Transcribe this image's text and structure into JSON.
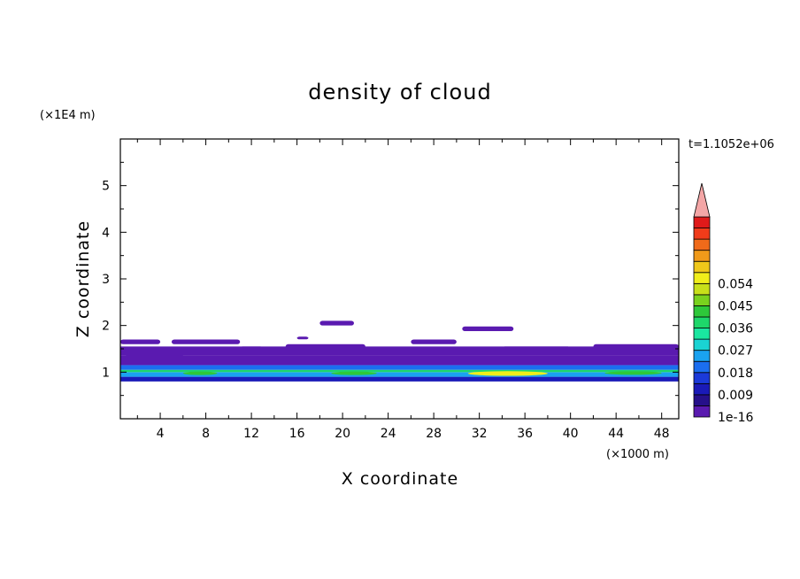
{
  "chart_data": {
    "type": "heatmap",
    "title": "density of cloud",
    "xlabel": "X coordinate",
    "ylabel": "Z coordinate",
    "x_unit": "(×1000 m)",
    "y_unit": "(×1E4 m)",
    "time_label": "t=1.1052e+06",
    "xlim": [
      0.5,
      49.5
    ],
    "ylim": [
      0,
      6
    ],
    "x_ticks": [
      "4",
      "8",
      "12",
      "16",
      "20",
      "24",
      "28",
      "32",
      "36",
      "40",
      "44",
      "48"
    ],
    "y_ticks": [
      "1",
      "2",
      "3",
      "4",
      "5"
    ],
    "colorbar": {
      "tick_labels": [
        "1e-16",
        "0.009",
        "0.018",
        "0.027",
        "0.036",
        "0.045",
        "0.054"
      ],
      "colors": [
        "#5a1ab0",
        "#26108a",
        "#1a1ab8",
        "#1b3ad9",
        "#1b6ef0",
        "#1aa2f0",
        "#1ad3d3",
        "#1ae6a0",
        "#1ed76a",
        "#2ec83a",
        "#7ad21e",
        "#c8e01a",
        "#f0ee1a",
        "#f0c81a",
        "#f09a1a",
        "#f06a1a",
        "#f03c1a",
        "#e01a1a"
      ],
      "over_color": "#f4a6a6"
    },
    "bands": [
      {
        "z": [
          0.8,
          0.9
        ],
        "level": 2
      },
      {
        "z": [
          0.9,
          1.0
        ],
        "level": 5
      },
      {
        "z": [
          1.0,
          1.05
        ],
        "level": 8
      },
      {
        "z": [
          1.05,
          1.15
        ],
        "level": 4
      },
      {
        "z": [
          1.15,
          1.35
        ],
        "level": 0
      },
      {
        "z": [
          1.35,
          1.55
        ],
        "level": 0
      }
    ],
    "patches": [
      {
        "x": [
          0.5,
          4
        ],
        "z": [
          1.6,
          1.7
        ]
      },
      {
        "x": [
          5,
          11
        ],
        "z": [
          1.6,
          1.7
        ]
      },
      {
        "x": [
          1,
          6
        ],
        "z": [
          1.3,
          1.4
        ]
      },
      {
        "x": [
          11,
          13
        ],
        "z": [
          1.5,
          1.55
        ]
      },
      {
        "x": [
          15,
          22
        ],
        "z": [
          1.5,
          1.6
        ]
      },
      {
        "x": [
          18,
          21
        ],
        "z": [
          2.0,
          2.1
        ]
      },
      {
        "x": [
          16,
          17
        ],
        "z": [
          1.72,
          1.76
        ]
      },
      {
        "x": [
          26,
          30
        ],
        "z": [
          1.6,
          1.7
        ]
      },
      {
        "x": [
          30.5,
          35
        ],
        "z": [
          1.88,
          1.98
        ]
      },
      {
        "x": [
          34,
          40
        ],
        "z": [
          1.45,
          1.55
        ]
      },
      {
        "x": [
          42,
          49.5
        ],
        "z": [
          1.45,
          1.6
        ]
      }
    ],
    "hotspots": [
      {
        "x": [
          31,
          38
        ],
        "z": [
          0.92,
          1.02
        ],
        "level": 12
      },
      {
        "x": [
          6,
          9
        ],
        "z": [
          0.95,
          1.0
        ],
        "level": 9
      },
      {
        "x": [
          19,
          23
        ],
        "z": [
          0.95,
          1.0
        ],
        "level": 9
      },
      {
        "x": [
          43,
          48
        ],
        "z": [
          0.96,
          1.0
        ],
        "level": 9
      }
    ]
  }
}
